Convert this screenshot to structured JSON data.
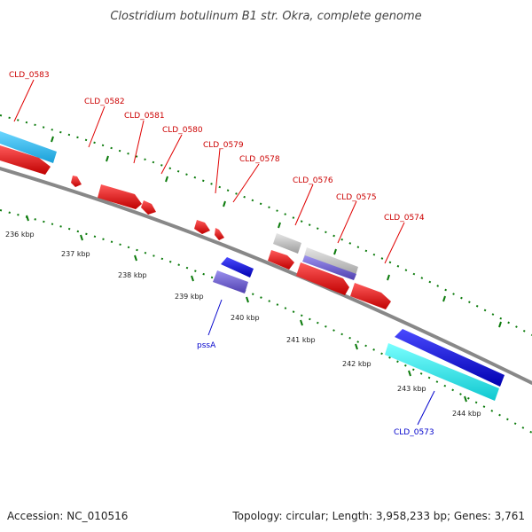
{
  "title": "Clostridium botulinum B1 str. Okra, complete genome",
  "footer": {
    "accession": "Accession: NC_010516",
    "summary": "Topology: circular; Length: 3,958,233 bp; Genes: 3,761"
  },
  "colors": {
    "backbone": "#888888",
    "cds_forward": "#e00000",
    "cds_reverse": "#1010d0",
    "gene_forward": "#30b8e8",
    "gene_reverse": "#20e8e8",
    "pseudo_reverse": "#6a5acd",
    "other_feature": "#b8b8b8",
    "tick": "#0a7a0a",
    "label_forward": "#cc0000",
    "label_reverse": "#0000cc"
  },
  "ticks": {
    "labels": [
      "236 kbp",
      "237 kbp",
      "238 kbp",
      "239 kbp",
      "240 kbp",
      "241 kbp",
      "242 kbp",
      "243 kbp",
      "244 kbp"
    ]
  },
  "gene_labels": {
    "forward": [
      "CLD_0583",
      "CLD_0582",
      "CLD_0581",
      "CLD_0580",
      "CLD_0579",
      "CLD_0578",
      "CLD_0576",
      "CLD_0575",
      "CLD_0574"
    ],
    "reverse": [
      "pssA",
      "CLD_0573"
    ]
  }
}
